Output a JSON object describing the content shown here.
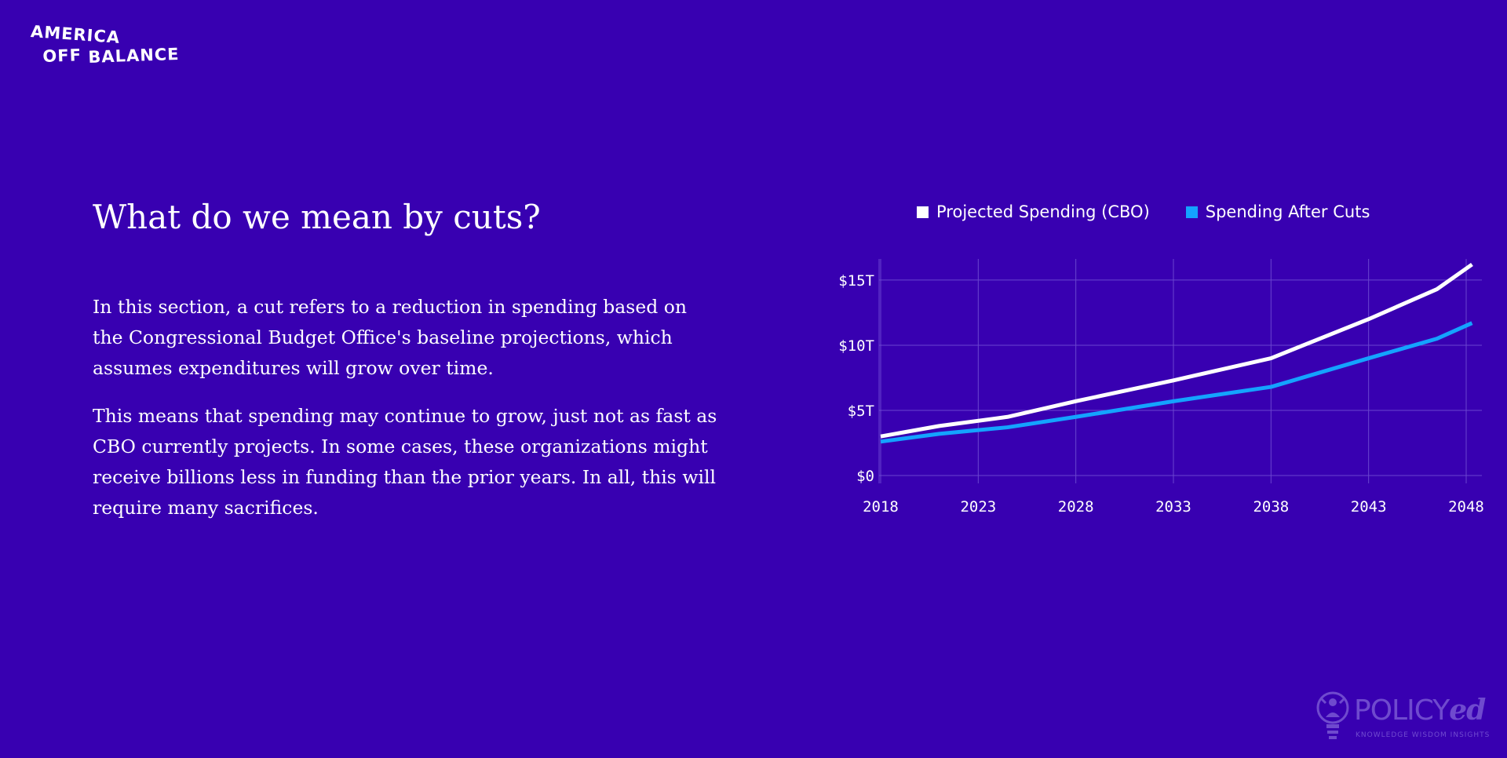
{
  "logo": {
    "line1": "AMERICA",
    "line2_word1": "OFF",
    "line2_word2": "BALANCE"
  },
  "heading": "What do we mean by cuts?",
  "paragraphs": [
    "In this section, a cut refers to a reduction in spending based on the Congressional Budget Office's baseline projections, which assumes expenditures will grow over time.",
    "This means that spending may continue to grow, just not as fast as CBO currently projects. In some cases, these organizations might receive billions less in funding than the prior years. In all, this will require many sacrifices."
  ],
  "brand": {
    "name_main": "POLICY",
    "name_suffix": "ed",
    "tagline": "KNOWLEDGE WISDOM INSIGHTS",
    "icon": "lightbulb-person-icon"
  },
  "colors": {
    "background": "#3800b1",
    "series_projected": "#ffffff",
    "series_after_cuts": "#14a3ff",
    "grid": "#6a45cf"
  },
  "chart_data": {
    "type": "line",
    "title": "",
    "xlabel": "",
    "ylabel": "",
    "x_ticks": [
      "2018",
      "2023",
      "2028",
      "2033",
      "2038",
      "2043",
      "2048"
    ],
    "y_ticks": [
      "$0",
      "$5T",
      "$10T",
      "$15T"
    ],
    "y_tick_values": [
      0,
      5,
      10,
      15
    ],
    "xlim": [
      2018,
      2048
    ],
    "ylim": [
      0,
      16.5
    ],
    "grid": true,
    "legend_position": "top",
    "series": [
      {
        "name": "Projected Spending (CBO)",
        "color": "#ffffff",
        "x": [
          2018,
          2021,
          2024.5,
          2028,
          2033,
          2038,
          2043,
          2046.5,
          2048.3
        ],
        "y": [
          3.0,
          3.8,
          4.5,
          5.7,
          7.3,
          9.0,
          12.0,
          14.3,
          16.2
        ]
      },
      {
        "name": "Spending After Cuts",
        "color": "#14a3ff",
        "x": [
          2018,
          2021,
          2024.5,
          2028,
          2033,
          2038,
          2043,
          2046.5,
          2048.3
        ],
        "y": [
          2.6,
          3.2,
          3.7,
          4.5,
          5.7,
          6.8,
          9.0,
          10.5,
          11.7
        ]
      }
    ]
  }
}
